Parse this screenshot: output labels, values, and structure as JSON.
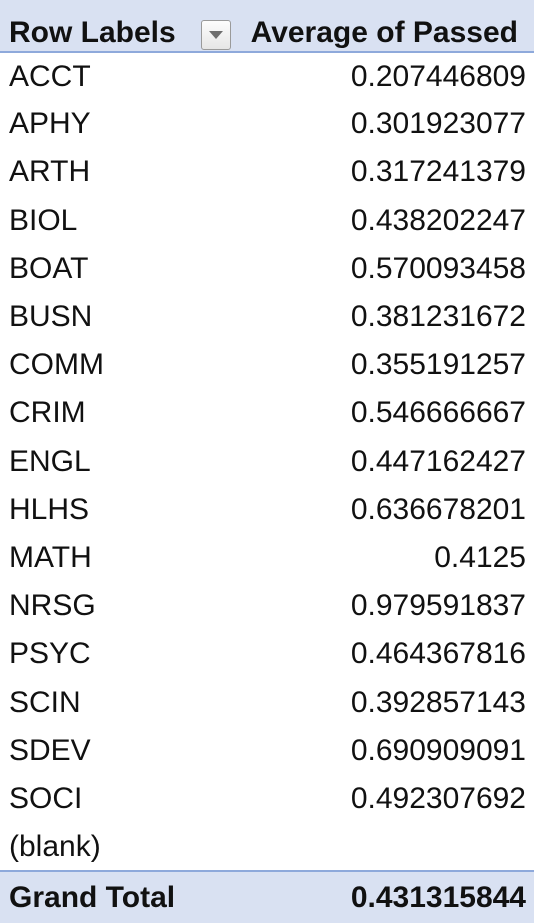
{
  "pivot": {
    "header": {
      "row_labels": "Row Labels",
      "value_field": "Average of Passed",
      "filter_icon": "filter-dropdown-icon"
    },
    "rows": [
      {
        "label": "ACCT",
        "value": "0.207446809"
      },
      {
        "label": "APHY",
        "value": "0.301923077"
      },
      {
        "label": "ARTH",
        "value": "0.317241379"
      },
      {
        "label": "BIOL",
        "value": "0.438202247"
      },
      {
        "label": "BOAT",
        "value": "0.570093458"
      },
      {
        "label": "BUSN",
        "value": "0.381231672"
      },
      {
        "label": "COMM",
        "value": "0.355191257"
      },
      {
        "label": "CRIM",
        "value": "0.546666667"
      },
      {
        "label": "ENGL",
        "value": "0.447162427"
      },
      {
        "label": "HLHS",
        "value": "0.636678201"
      },
      {
        "label": "MATH",
        "value": "0.4125"
      },
      {
        "label": "NRSG",
        "value": "0.979591837"
      },
      {
        "label": "PSYC",
        "value": "0.464367816"
      },
      {
        "label": "SCIN",
        "value": "0.392857143"
      },
      {
        "label": "SDEV",
        "value": "0.690909091"
      },
      {
        "label": "SOCI",
        "value": "0.492307692"
      },
      {
        "label": "(blank)",
        "value": ""
      }
    ],
    "grand_total": {
      "label": "Grand Total",
      "value": "0.431315844"
    },
    "colors": {
      "header_fill": "#d9e1f2",
      "header_border": "#8ea9db"
    }
  }
}
